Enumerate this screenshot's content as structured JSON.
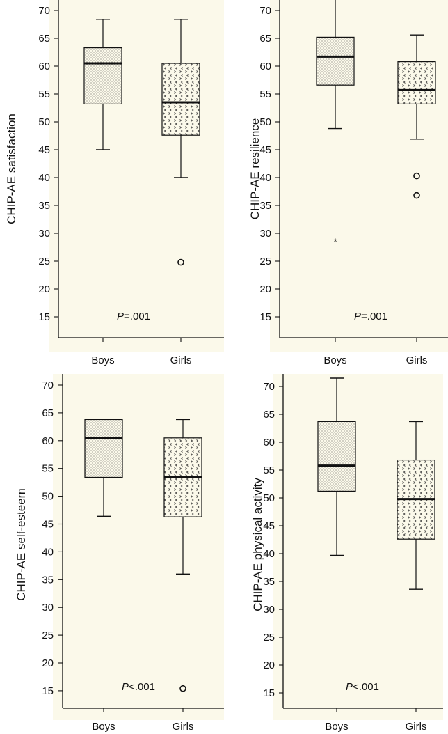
{
  "colors": {
    "plot_background": "#fbf9ea",
    "figure_background": "#ffffff",
    "ink": "#111111"
  },
  "chart_data": [
    {
      "type": "box",
      "ylabel": "CHIP-AE satisfaction",
      "xlabel": "",
      "categories": [
        "Boys",
        "Girls"
      ],
      "yticks": [
        15,
        20,
        25,
        30,
        35,
        40,
        45,
        50,
        55,
        60,
        65,
        70
      ],
      "ylim": [
        14.5,
        73.5
      ],
      "boxes": [
        {
          "name": "Boys",
          "pattern": "dots",
          "whisker_low": 45,
          "q1": 53.2,
          "median": 60.5,
          "q3": 63.3,
          "whisker_high": 68.4,
          "outliers": [],
          "extremes": []
        },
        {
          "name": "Girls",
          "pattern": "chevrons",
          "whisker_low": 40,
          "q1": 47.6,
          "median": 53.5,
          "q3": 60.5,
          "whisker_high": 68.4,
          "outliers": [
            24.8
          ],
          "extremes": []
        }
      ],
      "annotation": {
        "italic": "P",
        "rest": "=.001"
      }
    },
    {
      "type": "box",
      "ylabel": "CHIP-AE resilience",
      "xlabel": "",
      "categories": [
        "Boys",
        "Girls"
      ],
      "yticks": [
        15,
        20,
        25,
        30,
        35,
        40,
        45,
        50,
        55,
        60,
        65,
        70
      ],
      "ylim": [
        14.5,
        73.5
      ],
      "boxes": [
        {
          "name": "Boys",
          "pattern": "dots",
          "whisker_low": 48.8,
          "q1": 56.6,
          "median": 61.7,
          "q3": 65.2,
          "whisker_high": 73.6,
          "outliers": [],
          "extremes": [
            28.7
          ]
        },
        {
          "name": "Girls",
          "pattern": "chevrons",
          "whisker_low": 46.9,
          "q1": 53.2,
          "median": 55.7,
          "q3": 60.8,
          "whisker_high": 65.6,
          "outliers": [
            40.3,
            36.8
          ],
          "extremes": []
        }
      ],
      "annotation": {
        "italic": "P",
        "rest": "=.001"
      }
    },
    {
      "type": "box",
      "ylabel": "CHIP-AE self-esteem",
      "xlabel": "",
      "categories": [
        "Boys",
        "Girls"
      ],
      "yticks": [
        15,
        20,
        25,
        30,
        35,
        40,
        45,
        50,
        55,
        60,
        65,
        70
      ],
      "ylim": [
        14.5,
        73.5
      ],
      "boxes": [
        {
          "name": "Boys",
          "pattern": "dots",
          "whisker_low": 46.4,
          "q1": 53.4,
          "median": 60.5,
          "q3": 63.8,
          "whisker_high": 63.8,
          "outliers": [],
          "extremes": []
        },
        {
          "name": "Girls",
          "pattern": "chevrons",
          "whisker_low": 36,
          "q1": 46.3,
          "median": 53.4,
          "q3": 60.5,
          "whisker_high": 63.8,
          "outliers": [
            15.4
          ],
          "extremes": []
        }
      ],
      "annotation": {
        "italic": "P",
        "rest": "<.001"
      }
    },
    {
      "type": "box",
      "ylabel": "CHIP-AE physical activity",
      "xlabel": "",
      "categories": [
        "Boys",
        "Girls"
      ],
      "yticks": [
        15,
        20,
        25,
        30,
        35,
        40,
        45,
        50,
        55,
        60,
        65,
        70
      ],
      "ylim": [
        14.5,
        73.5
      ],
      "boxes": [
        {
          "name": "Boys",
          "pattern": "dots",
          "whisker_low": 39.7,
          "q1": 51.2,
          "median": 55.8,
          "q3": 63.7,
          "whisker_high": 71.5,
          "outliers": [],
          "extremes": []
        },
        {
          "name": "Girls",
          "pattern": "chevrons",
          "whisker_low": 33.6,
          "q1": 42.6,
          "median": 49.8,
          "q3": 56.8,
          "whisker_high": 63.7,
          "outliers": [],
          "extremes": []
        }
      ],
      "annotation": {
        "italic": "P",
        "rest": "<.001"
      }
    }
  ]
}
